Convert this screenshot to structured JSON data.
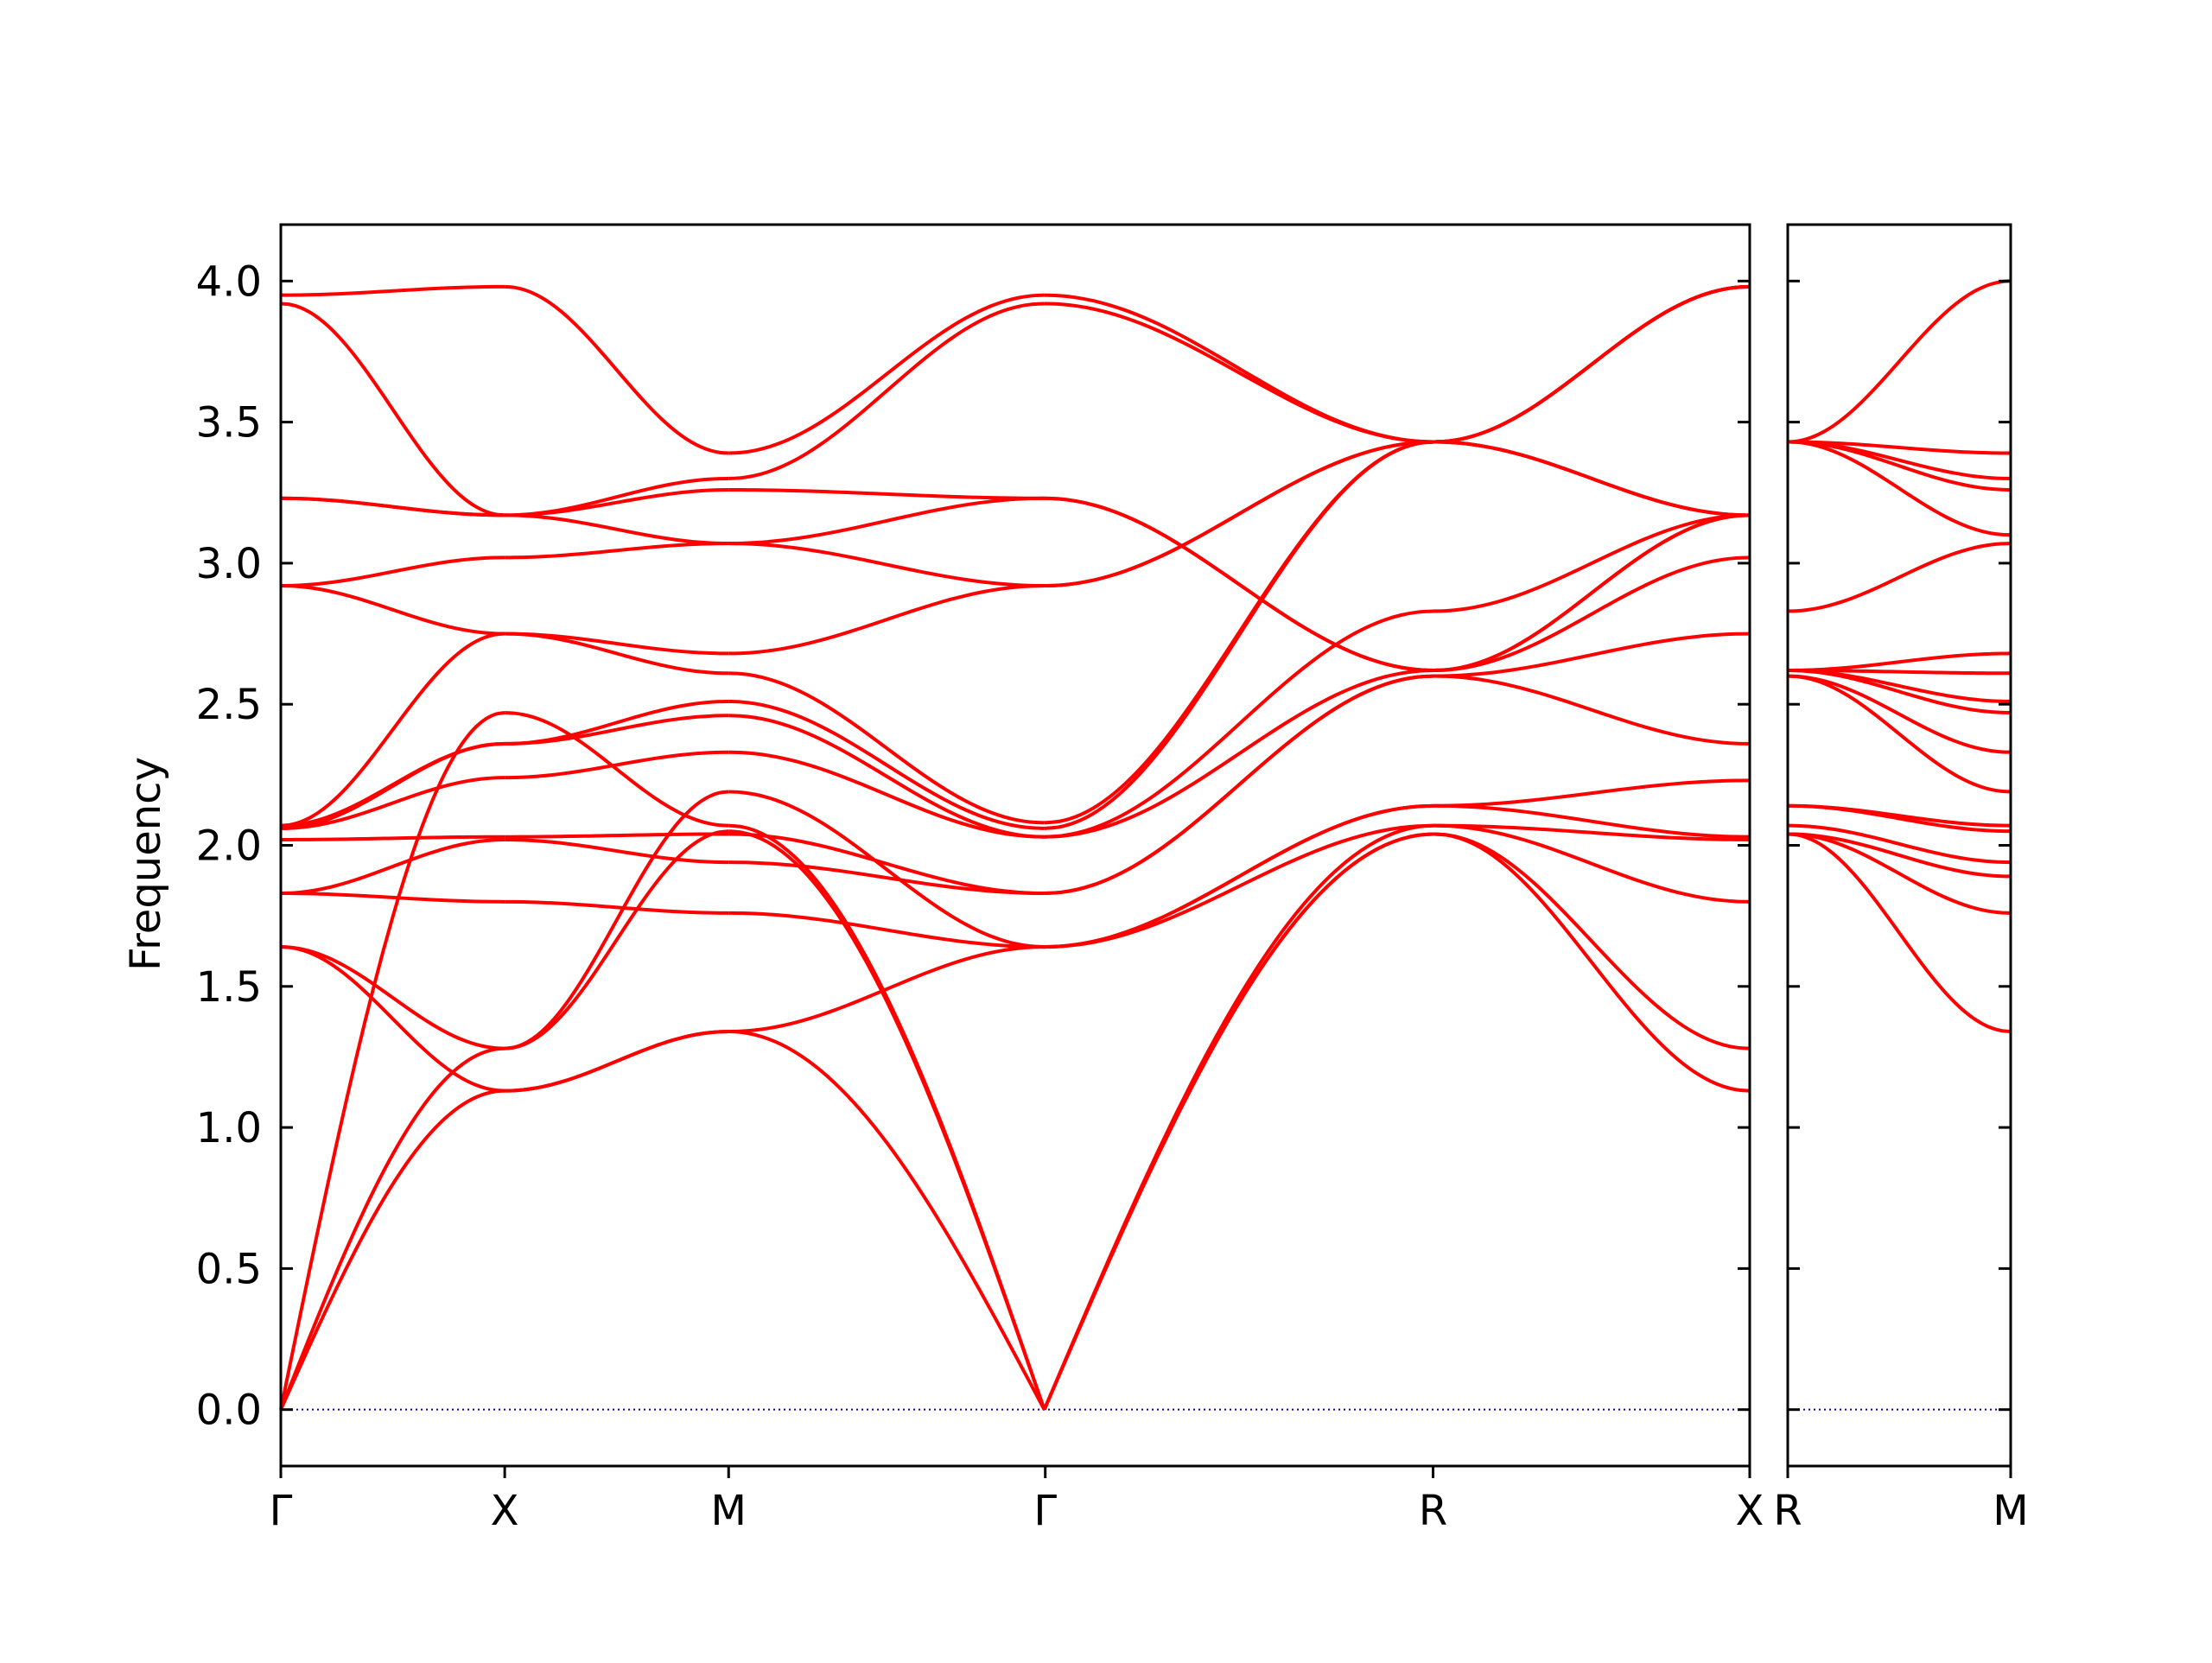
{
  "chart_data": {
    "type": "line",
    "title": "",
    "ylabel": "Frequency",
    "ylim": [
      -0.2,
      4.2
    ],
    "yticks": [
      "0.0",
      "0.5",
      "1.0",
      "1.5",
      "2.0",
      "2.5",
      "3.0",
      "3.5",
      "4.0"
    ],
    "ytick_values": [
      0.0,
      0.5,
      1.0,
      1.5,
      2.0,
      2.5,
      3.0,
      3.5,
      4.0
    ],
    "line_color": "#ff0000",
    "zero_line_color": "#0000cc",
    "grid": false,
    "legend": "none",
    "panels": [
      {
        "name": "Γ-X-M-Γ-R-X",
        "high_symmetry_labels": [
          "Γ",
          "X",
          "M",
          "Γ",
          "R",
          "X"
        ],
        "x_ticks": [
          0.0,
          1.0,
          2.0,
          3.4142,
          5.1463,
          6.5605
        ],
        "segment_samples": [
          [
            0.0,
            0.5,
            1.0
          ],
          [
            1.0,
            1.5,
            2.0
          ],
          [
            2.0,
            2.71,
            3.41
          ],
          [
            3.41,
            4.28,
            5.15
          ],
          [
            5.15,
            5.85,
            6.56
          ]
        ],
        "bands": [
          [
            0.0,
            1.13,
            1.34,
            0.0,
            2.04,
            1.13
          ],
          [
            0.0,
            1.28,
            2.05,
            0.0,
            2.04,
            1.28
          ],
          [
            0.0,
            2.47,
            2.07,
            0.0,
            2.07,
            1.8
          ],
          [
            1.64,
            1.13,
            1.34,
            1.64,
            2.07,
            2.02
          ],
          [
            1.64,
            1.28,
            2.19,
            1.64,
            2.14,
            2.03
          ],
          [
            1.83,
            1.8,
            1.76,
            1.64,
            2.14,
            2.23
          ],
          [
            1.83,
            2.02,
            1.94,
            1.83,
            2.6,
            2.36
          ],
          [
            2.02,
            2.03,
            2.04,
            1.83,
            2.6,
            2.75
          ],
          [
            2.06,
            2.24,
            2.33,
            2.03,
            2.62,
            3.02
          ],
          [
            2.06,
            2.36,
            2.46,
            2.03,
            2.83,
            3.17
          ],
          [
            2.07,
            2.36,
            2.51,
            2.06,
            3.43,
            3.17
          ],
          [
            2.07,
            2.75,
            2.61,
            2.08,
            3.43,
            3.98
          ],
          [
            2.92,
            2.75,
            2.68,
            2.92,
            3.43,
            3.98
          ],
          [
            2.92,
            3.02,
            3.07,
            2.92,
            3.43,
            3.98
          ],
          [
            3.23,
            3.17,
            3.07,
            3.23,
            2.62,
            3.17
          ],
          [
            3.23,
            3.17,
            3.26,
            3.23,
            2.62,
            3.17
          ],
          [
            3.92,
            3.17,
            3.3,
            3.92,
            3.43,
            3.17
          ],
          [
            3.95,
            3.98,
            3.39,
            3.95,
            3.43,
            3.98
          ]
        ]
      },
      {
        "name": "R-M",
        "high_symmetry_labels": [
          "R",
          "M"
        ],
        "x_ticks": [
          0.0,
          1.0
        ],
        "segment_samples": [
          [
            0.0,
            0.5,
            1.0
          ]
        ],
        "bands": [
          [
            2.04,
            1.34
          ],
          [
            2.04,
            1.76
          ],
          [
            2.04,
            1.89
          ],
          [
            2.07,
            1.94
          ],
          [
            2.14,
            2.05
          ],
          [
            2.14,
            2.07
          ],
          [
            2.6,
            2.19
          ],
          [
            2.6,
            2.33
          ],
          [
            2.62,
            2.47
          ],
          [
            2.62,
            2.51
          ],
          [
            2.62,
            2.61
          ],
          [
            2.62,
            2.68
          ],
          [
            2.83,
            3.07
          ],
          [
            3.43,
            3.1
          ],
          [
            3.43,
            3.26
          ],
          [
            3.43,
            3.3
          ],
          [
            3.43,
            3.39
          ],
          [
            3.43,
            4.0
          ]
        ]
      }
    ]
  }
}
